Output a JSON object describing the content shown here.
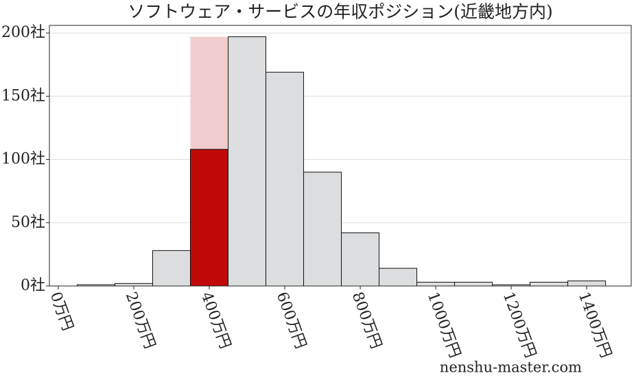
{
  "chart_data": {
    "type": "histogram",
    "title": "ソフトウェア・サービスの年収ポジション(近畿地方内)",
    "bins": [
      50,
      150,
      250,
      350,
      450,
      550,
      650,
      750,
      850,
      950,
      1050,
      1150,
      1250,
      1350,
      1450
    ],
    "values": [
      1,
      2,
      28,
      108,
      197,
      169,
      90,
      42,
      14,
      3,
      3,
      1,
      3,
      4
    ],
    "color": "#dcdddf",
    "highlight_index": 3,
    "highlight_color": "#c00a0a",
    "highlight_band_color": "#f0cccc",
    "xlim": [
      -23.6,
      1518
    ],
    "ylim": [
      0,
      206
    ],
    "xticks": [
      {
        "value": 0,
        "label": "0万円"
      },
      {
        "value": 200,
        "label": "200万円"
      },
      {
        "value": 400,
        "label": "400万円"
      },
      {
        "value": 600,
        "label": "600万円"
      },
      {
        "value": 800,
        "label": "800万円"
      },
      {
        "value": 1000,
        "label": "1000万円"
      },
      {
        "value": 1200,
        "label": "1200万円"
      },
      {
        "value": 1400,
        "label": "1400万円"
      }
    ],
    "yticks": [
      {
        "value": 0,
        "label": "0社"
      },
      {
        "value": 50,
        "label": "50社"
      },
      {
        "value": 100,
        "label": "100社"
      },
      {
        "value": 150,
        "label": "150社"
      },
      {
        "value": 200,
        "label": "200社"
      }
    ],
    "grid": true,
    "watermark": "nenshu-master.com"
  }
}
